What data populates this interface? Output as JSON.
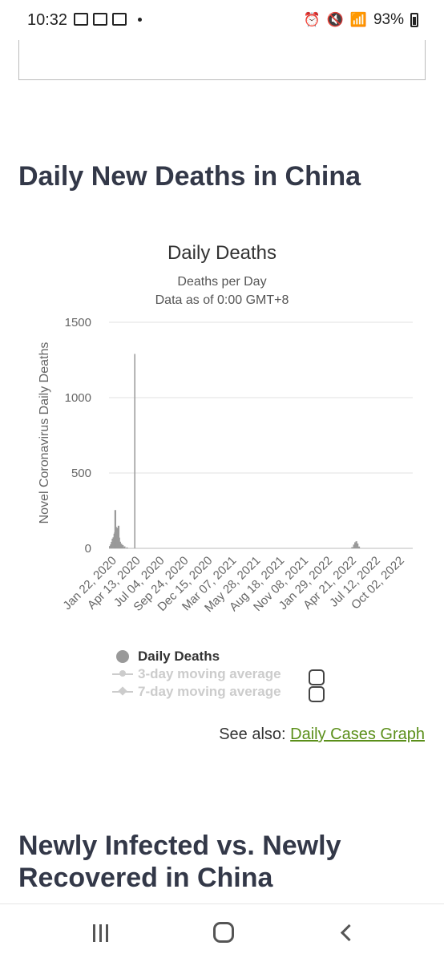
{
  "status_bar": {
    "time": "10:32",
    "battery": "93%"
  },
  "section1": {
    "title": "Daily New Deaths in China"
  },
  "chart_data": {
    "type": "bar",
    "title": "Daily Deaths",
    "subtitle_1": "Deaths per Day",
    "subtitle_2": "Data as of 0:00 GMT+8",
    "ylabel": "Novel Coronavirus Daily Deaths",
    "ylim": [
      0,
      1500
    ],
    "yticks": [
      0,
      500,
      1000,
      1500
    ],
    "xtick_labels": [
      "Jan 22, 2020",
      "Apr 13, 2020",
      "Jul 04, 2020",
      "Sep 24, 2020",
      "Dec 15, 2020",
      "Mar 07, 2021",
      "May 28, 2021",
      "Aug 18, 2021",
      "Nov 08, 2021",
      "Jan 29, 2022",
      "Apr 21, 2022",
      "Jul 12, 2022",
      "Oct 02, 2022"
    ],
    "x_start": "2020-01-22",
    "x_end": "2022-10-31",
    "series": [
      {
        "name": "Daily Deaths",
        "points": [
          [
            "2020-01-25",
            15
          ],
          [
            "2020-01-28",
            26
          ],
          [
            "2020-01-31",
            43
          ],
          [
            "2020-02-03",
            64
          ],
          [
            "2020-02-06",
            73
          ],
          [
            "2020-02-09",
            97
          ],
          [
            "2020-02-11",
            108
          ],
          [
            "2020-02-12",
            254
          ],
          [
            "2020-02-14",
            143
          ],
          [
            "2020-02-16",
            105
          ],
          [
            "2020-02-18",
            136
          ],
          [
            "2020-02-20",
            118
          ],
          [
            "2020-02-23",
            150
          ],
          [
            "2020-02-25",
            71
          ],
          [
            "2020-02-28",
            44
          ],
          [
            "2020-03-03",
            31
          ],
          [
            "2020-03-08",
            22
          ],
          [
            "2020-03-14",
            13
          ],
          [
            "2020-03-22",
            6
          ],
          [
            "2020-04-17",
            1290
          ],
          [
            "2022-04-12",
            8
          ],
          [
            "2022-04-18",
            25
          ],
          [
            "2022-04-22",
            40
          ],
          [
            "2022-04-26",
            47
          ],
          [
            "2022-04-30",
            32
          ],
          [
            "2022-05-05",
            12
          ]
        ]
      }
    ],
    "legend": [
      {
        "label": "Daily Deaths",
        "active": true
      },
      {
        "label": "3-day moving average",
        "active": false
      },
      {
        "label": "7-day moving average",
        "active": false
      }
    ],
    "colors": {
      "bars": "#999999",
      "grid": "#e0e0e0"
    }
  },
  "see_also": {
    "prefix": "See also: ",
    "link": "Daily Cases Graph"
  },
  "section2": {
    "title": "Newly Infected vs. Newly Recovered in China"
  },
  "nav": {
    "recent_icon": "recent-apps-icon",
    "home_icon": "home-icon",
    "back_icon": "back-icon"
  }
}
